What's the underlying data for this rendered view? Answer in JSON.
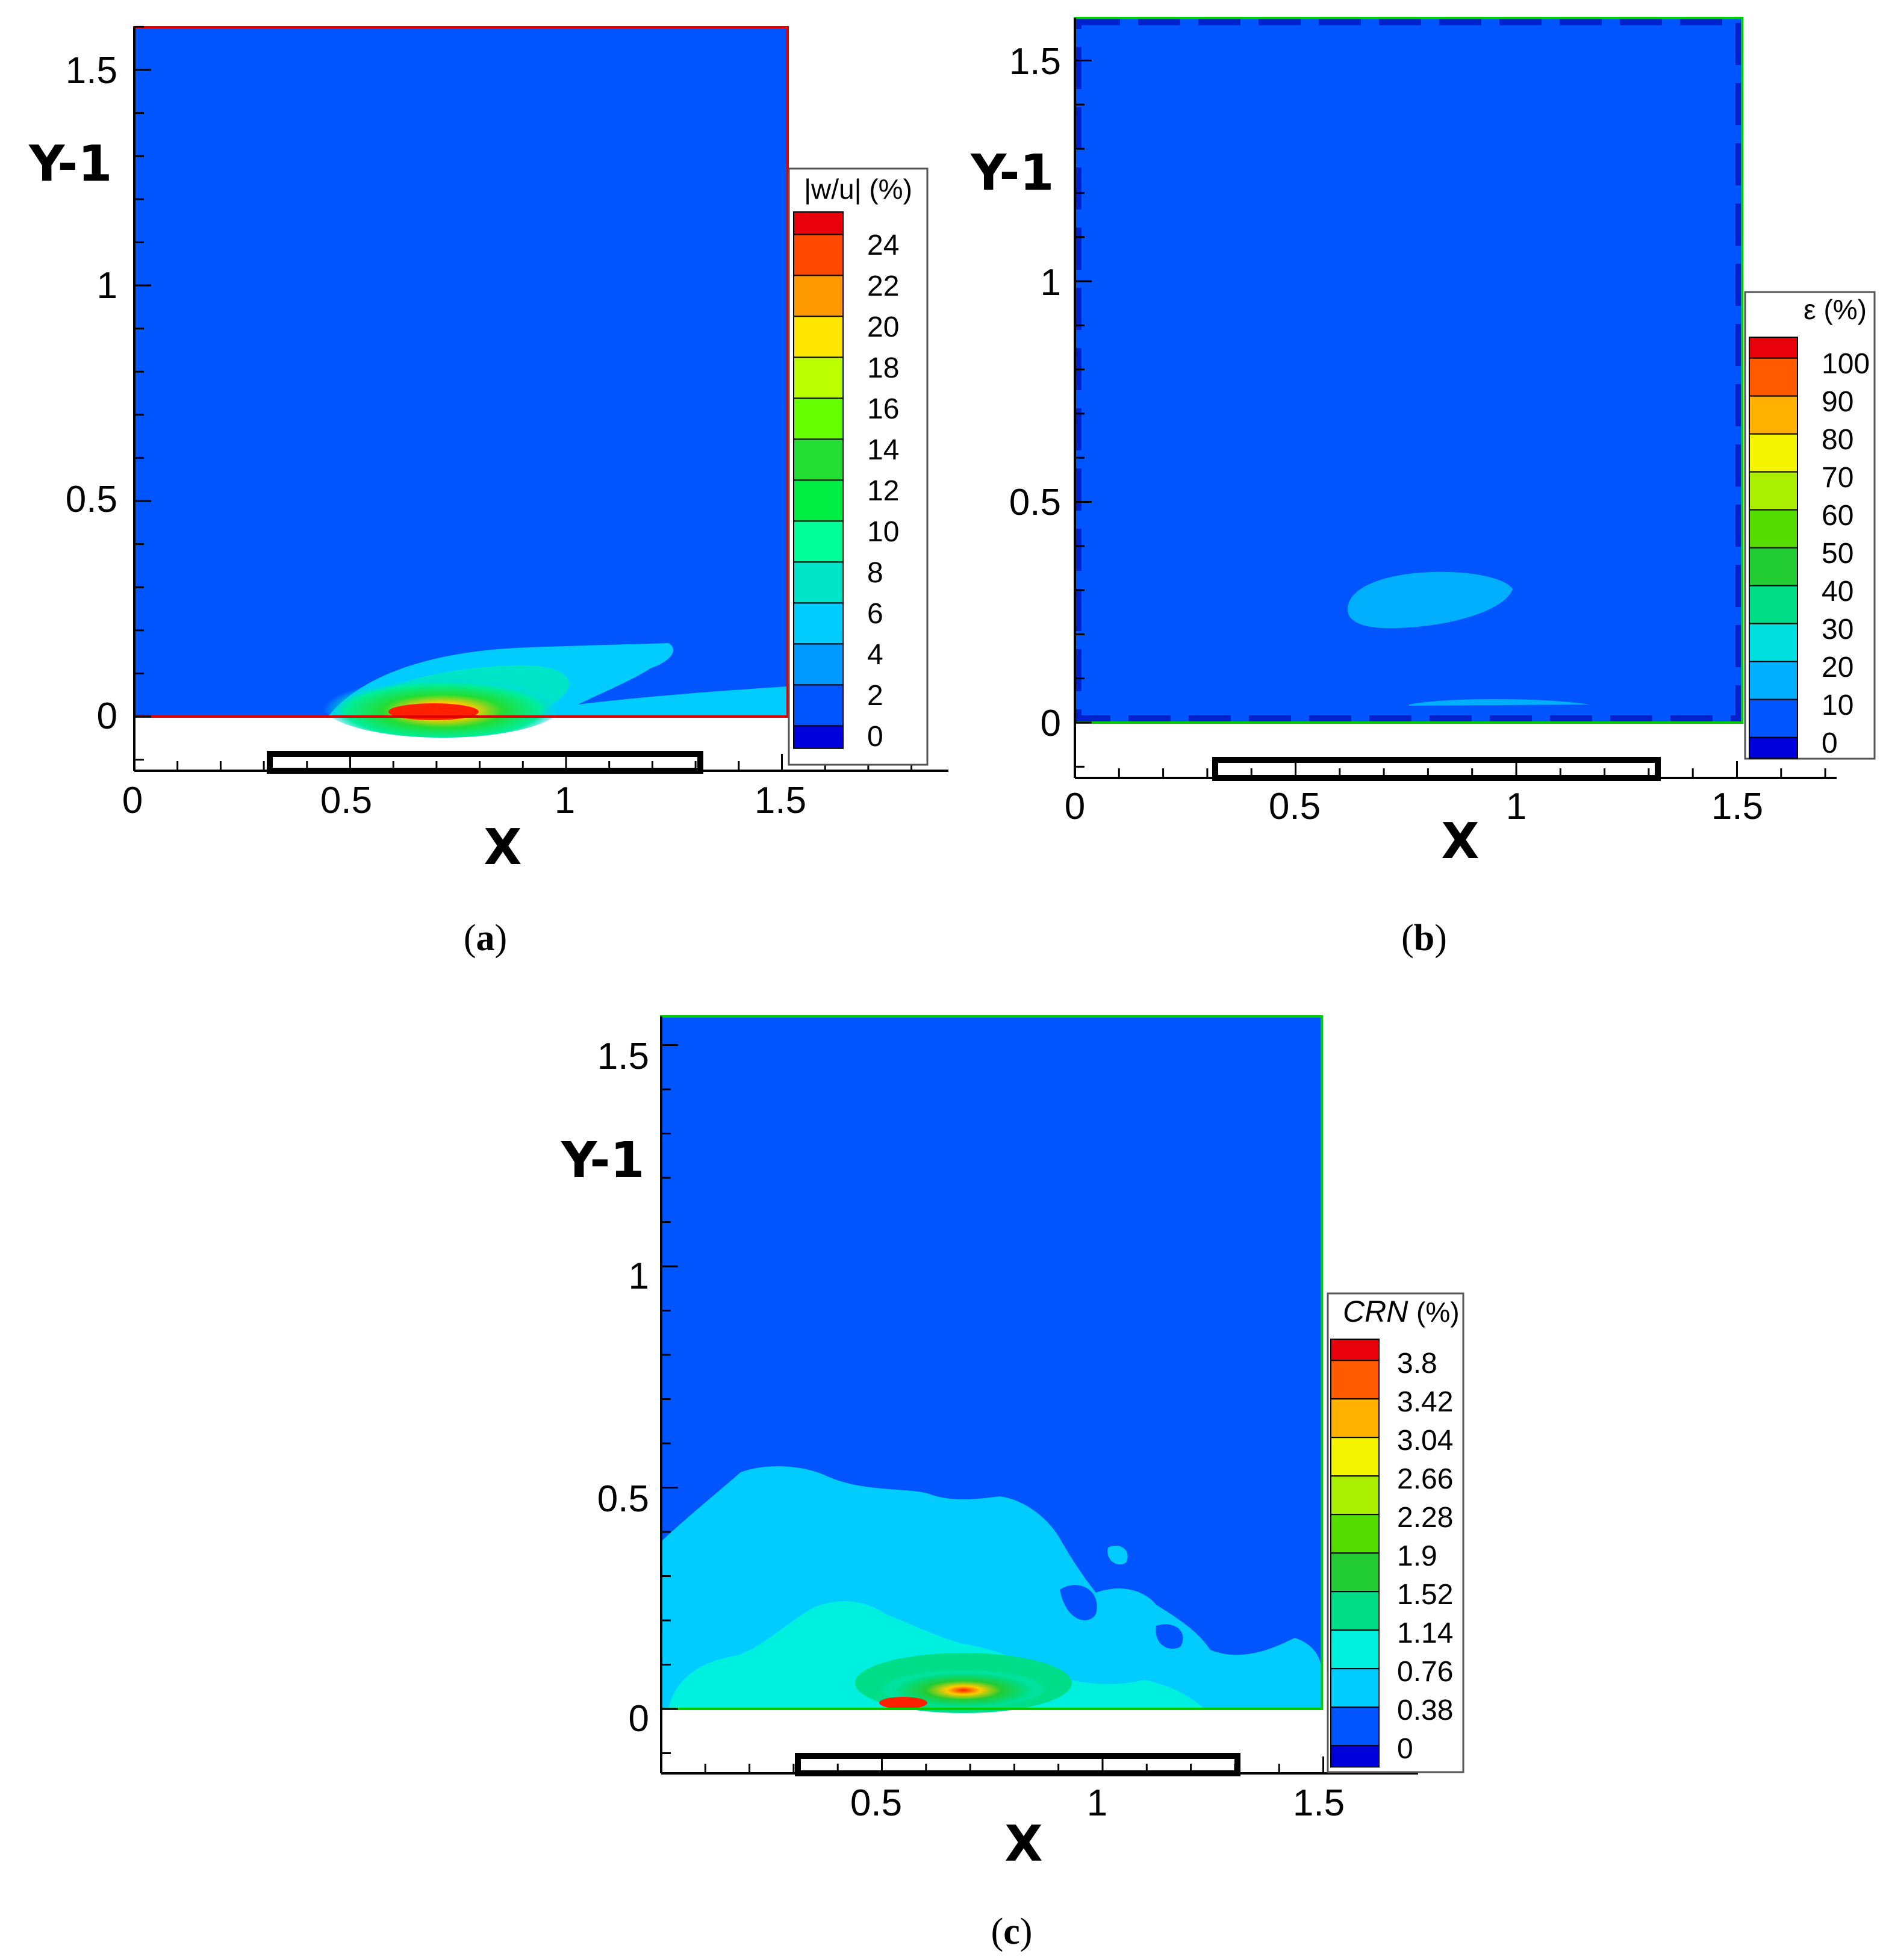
{
  "chart_data": [
    {
      "type": "heatmap",
      "panel": "a",
      "caption_letter": "a",
      "xlabel": "X",
      "ylabel": "Y-1",
      "xlim": [
        0,
        1.85
      ],
      "ylim": [
        -0.13,
        1.6
      ],
      "xticks": [
        "0",
        "0.5",
        "1",
        "1.5"
      ],
      "yticks": [
        "0",
        "0.5",
        "1",
        "1.5"
      ],
      "colorbar": {
        "title": "|w/u| (%)",
        "levels": [
          "24",
          "22",
          "20",
          "18",
          "16",
          "14",
          "12",
          "10",
          "8",
          "6",
          "4",
          "2",
          "0"
        ],
        "colors": [
          "#e8000b",
          "#ff4800",
          "#ff9900",
          "#ffe600",
          "#bbff00",
          "#66ff00",
          "#22dd33",
          "#00ee44",
          "#00ff99",
          "#00e5c8",
          "#00ccff",
          "#0099ff",
          "#0055ff",
          "#0000dd"
        ]
      },
      "border_color": "#e00000",
      "background_color": "#0055ff",
      "hotspot": "lower, around X 0.5-0.9, Y-1 0-0.15"
    },
    {
      "type": "heatmap",
      "panel": "b",
      "caption_letter": "b",
      "xlabel": "X",
      "ylabel": "Y-1",
      "xlim": [
        0,
        1.72
      ],
      "ylim": [
        -0.13,
        1.6
      ],
      "xticks": [
        "0",
        "0.5",
        "1",
        "1.5"
      ],
      "yticks": [
        "0",
        "0.5",
        "1",
        "1.5"
      ],
      "colorbar": {
        "title": "ε (%)",
        "levels": [
          "100",
          "90",
          "80",
          "70",
          "60",
          "50",
          "40",
          "30",
          "20",
          "10",
          "0"
        ],
        "colors": [
          "#e8000b",
          "#ff5a00",
          "#ffb000",
          "#f5f500",
          "#aaee00",
          "#55dd00",
          "#22cc33",
          "#00dd88",
          "#00e0e0",
          "#00b0ff",
          "#0055ff",
          "#0000dd"
        ]
      },
      "border_color": "#00cc00",
      "background_color": "#0055ff",
      "hotspot": "faint patch near X 0.8, Y-1 0.28"
    },
    {
      "type": "heatmap",
      "panel": "c",
      "caption_letter": "c",
      "xlabel": "X",
      "ylabel": "Y-1",
      "xlim": [
        0,
        1.72
      ],
      "ylim": [
        -0.13,
        1.6
      ],
      "xticks": [
        "0.5",
        "1",
        "1.5"
      ],
      "yticks": [
        "0",
        "0.5",
        "1",
        "1.5"
      ],
      "colorbar": {
        "title": "CRN",
        "title_suffix": "(%)",
        "levels": [
          "3.8",
          "3.42",
          "3.04",
          "2.66",
          "2.28",
          "1.9",
          "1.52",
          "1.14",
          "0.76",
          "0.38",
          "0"
        ],
        "colors": [
          "#e8000b",
          "#ff5a00",
          "#ffb000",
          "#f5f500",
          "#aaee00",
          "#55dd00",
          "#22cc33",
          "#00dd88",
          "#00f0e0",
          "#00ccff",
          "#0055ff",
          "#0000dd"
        ]
      },
      "border_color": "#00cc00",
      "background_color": "#0055ff",
      "hotspot": "lower, around X 0.4-0.9, Y-1 0-0.2"
    }
  ]
}
